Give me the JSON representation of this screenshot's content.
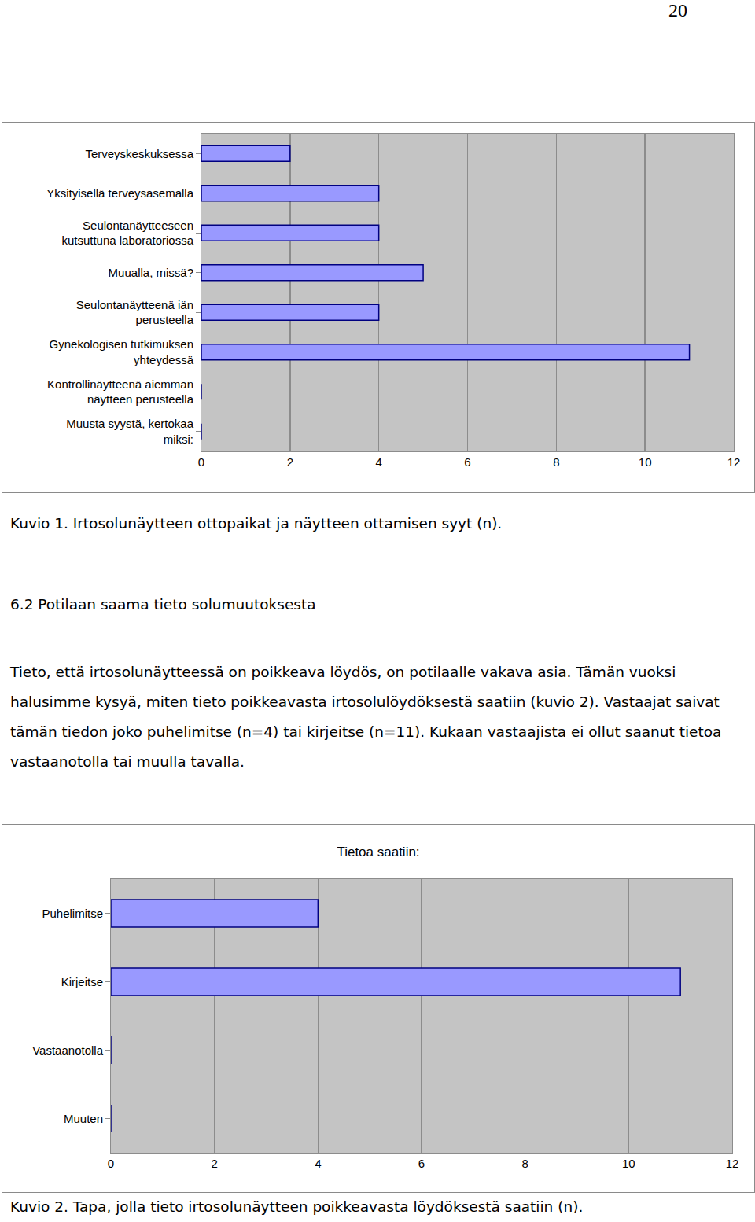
{
  "page_number": "20",
  "chart_data": [
    {
      "type": "bar",
      "orientation": "horizontal",
      "categories": [
        "Terveyskeskuksessa",
        "Yksityisellä terveysasemalla",
        "Seulontanäytteeseen kutsuttuna laboratoriossa",
        "Muualla, missä?",
        "Seulontanäytteenä iän perusteella",
        "Gynekologisen tutkimuksen yhteydessä",
        "Kontrollinäytteenä aiemman näytteen perusteella",
        "Muusta syystä, kertokaa miksi:"
      ],
      "values": [
        2,
        4,
        4,
        5,
        4,
        11,
        0,
        0
      ],
      "color": "#9999ff",
      "xlim": [
        0,
        12
      ],
      "xticks": [
        0,
        2,
        4,
        6,
        8,
        10,
        12
      ],
      "grid": true,
      "data_labels": false
    },
    {
      "type": "bar",
      "orientation": "horizontal",
      "title": "Tietoa saatiin:",
      "categories": [
        "Puhelimitse",
        "Kirjeitse",
        "Vastaanotolla",
        "Muuten"
      ],
      "values": [
        4,
        11,
        0,
        0
      ],
      "color": "#9999ff",
      "xlim": [
        0,
        12
      ],
      "xticks": [
        0,
        2,
        4,
        6,
        8,
        10,
        12
      ],
      "grid": true,
      "data_labels": false
    }
  ],
  "captions": [
    "Kuvio 1. Irtosolunäytteen ottopaikat ja näytteen ottamisen syyt (n).",
    "Kuvio 2. Tapa, jolla tieto irtosolunäytteen poikkeavasta löydöksestä saatiin (n)."
  ],
  "heading": "6.2 Potilaan saama tieto solumuutoksesta",
  "paragraph": "Tieto, että irtosolunäytteessä on poikkeava löydös, on potilaalle vakava asia. Tämän vuoksi halusimme kysyä, miten tieto poikkeavasta irtosolulöydöksestä saatiin (kuvio 2). Vastaajat saivat tämän tiedon joko puhelimitse (n=4) tai kirjeitse (n=11). Kukaan vastaajista ei ollut saanut tietoa vastaanotolla tai muulla tavalla."
}
